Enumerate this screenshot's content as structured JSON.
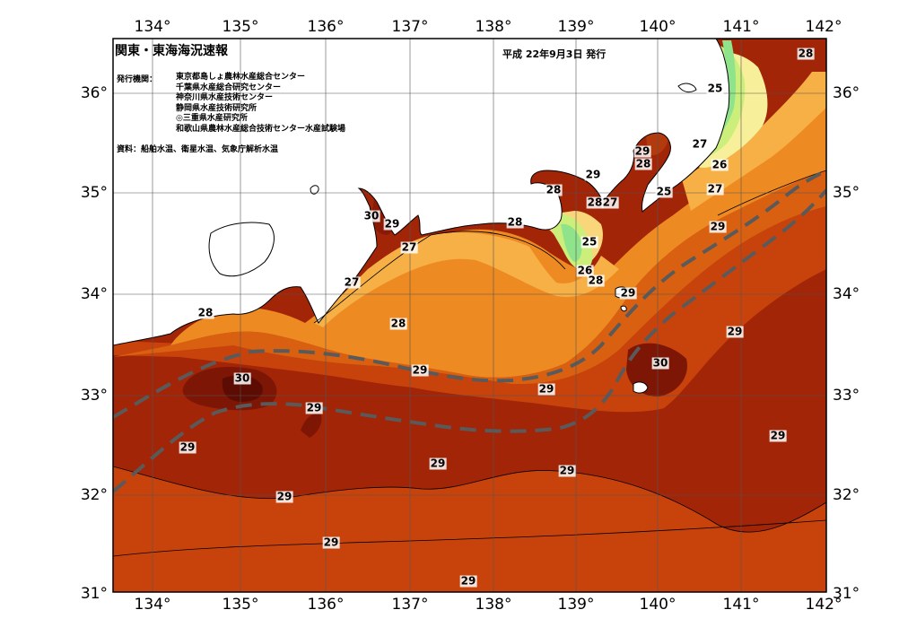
{
  "map": {
    "title": "関東・東海海況速報",
    "date": "平成 22年9月3日 発行",
    "issuer_label": "発行機関：",
    "issuers": [
      "東京都島しょ農林水産総合センター",
      "千葉県水産総合研究センター",
      "神奈川県水産技術センター",
      "静岡県水産技術研究所",
      "◎三重県水産研究所",
      "和歌山県農林水産総合技術センター水産試験場"
    ],
    "source": "資料：船舶水温、衛星水温、気象庁解析水温",
    "lon_labels": [
      "134°",
      "135°",
      "136°",
      "137°",
      "138°",
      "139°",
      "140°",
      "141°",
      "142°"
    ],
    "lat_labels": [
      "36°",
      "35°",
      "34°",
      "33°",
      "32°",
      "31°"
    ],
    "isotherm_labels": [
      "28",
      "25",
      "29",
      "28",
      "26",
      "27",
      "25",
      "27",
      "29",
      "29",
      "28",
      "28",
      "27",
      "30",
      "29",
      "28",
      "25",
      "27",
      "26",
      "28",
      "27",
      "29",
      "28",
      "29",
      "28",
      "30",
      "29",
      "29",
      "30",
      "29",
      "29",
      "29",
      "29",
      "29",
      "29",
      "29",
      "29",
      "29",
      "29"
    ],
    "colors": {
      "deep": "#a22508",
      "warm": "#c8430c",
      "mid": "#d96010",
      "orange": "#ee8a22",
      "light": "#f6b045",
      "pale": "#fad67a",
      "cream": "#f8ef9a",
      "green1": "#ccef7c",
      "green2": "#8fe38a",
      "hot": "#7e1606",
      "land": "#ffffff",
      "kuroshio": "#5a5a5a"
    }
  }
}
